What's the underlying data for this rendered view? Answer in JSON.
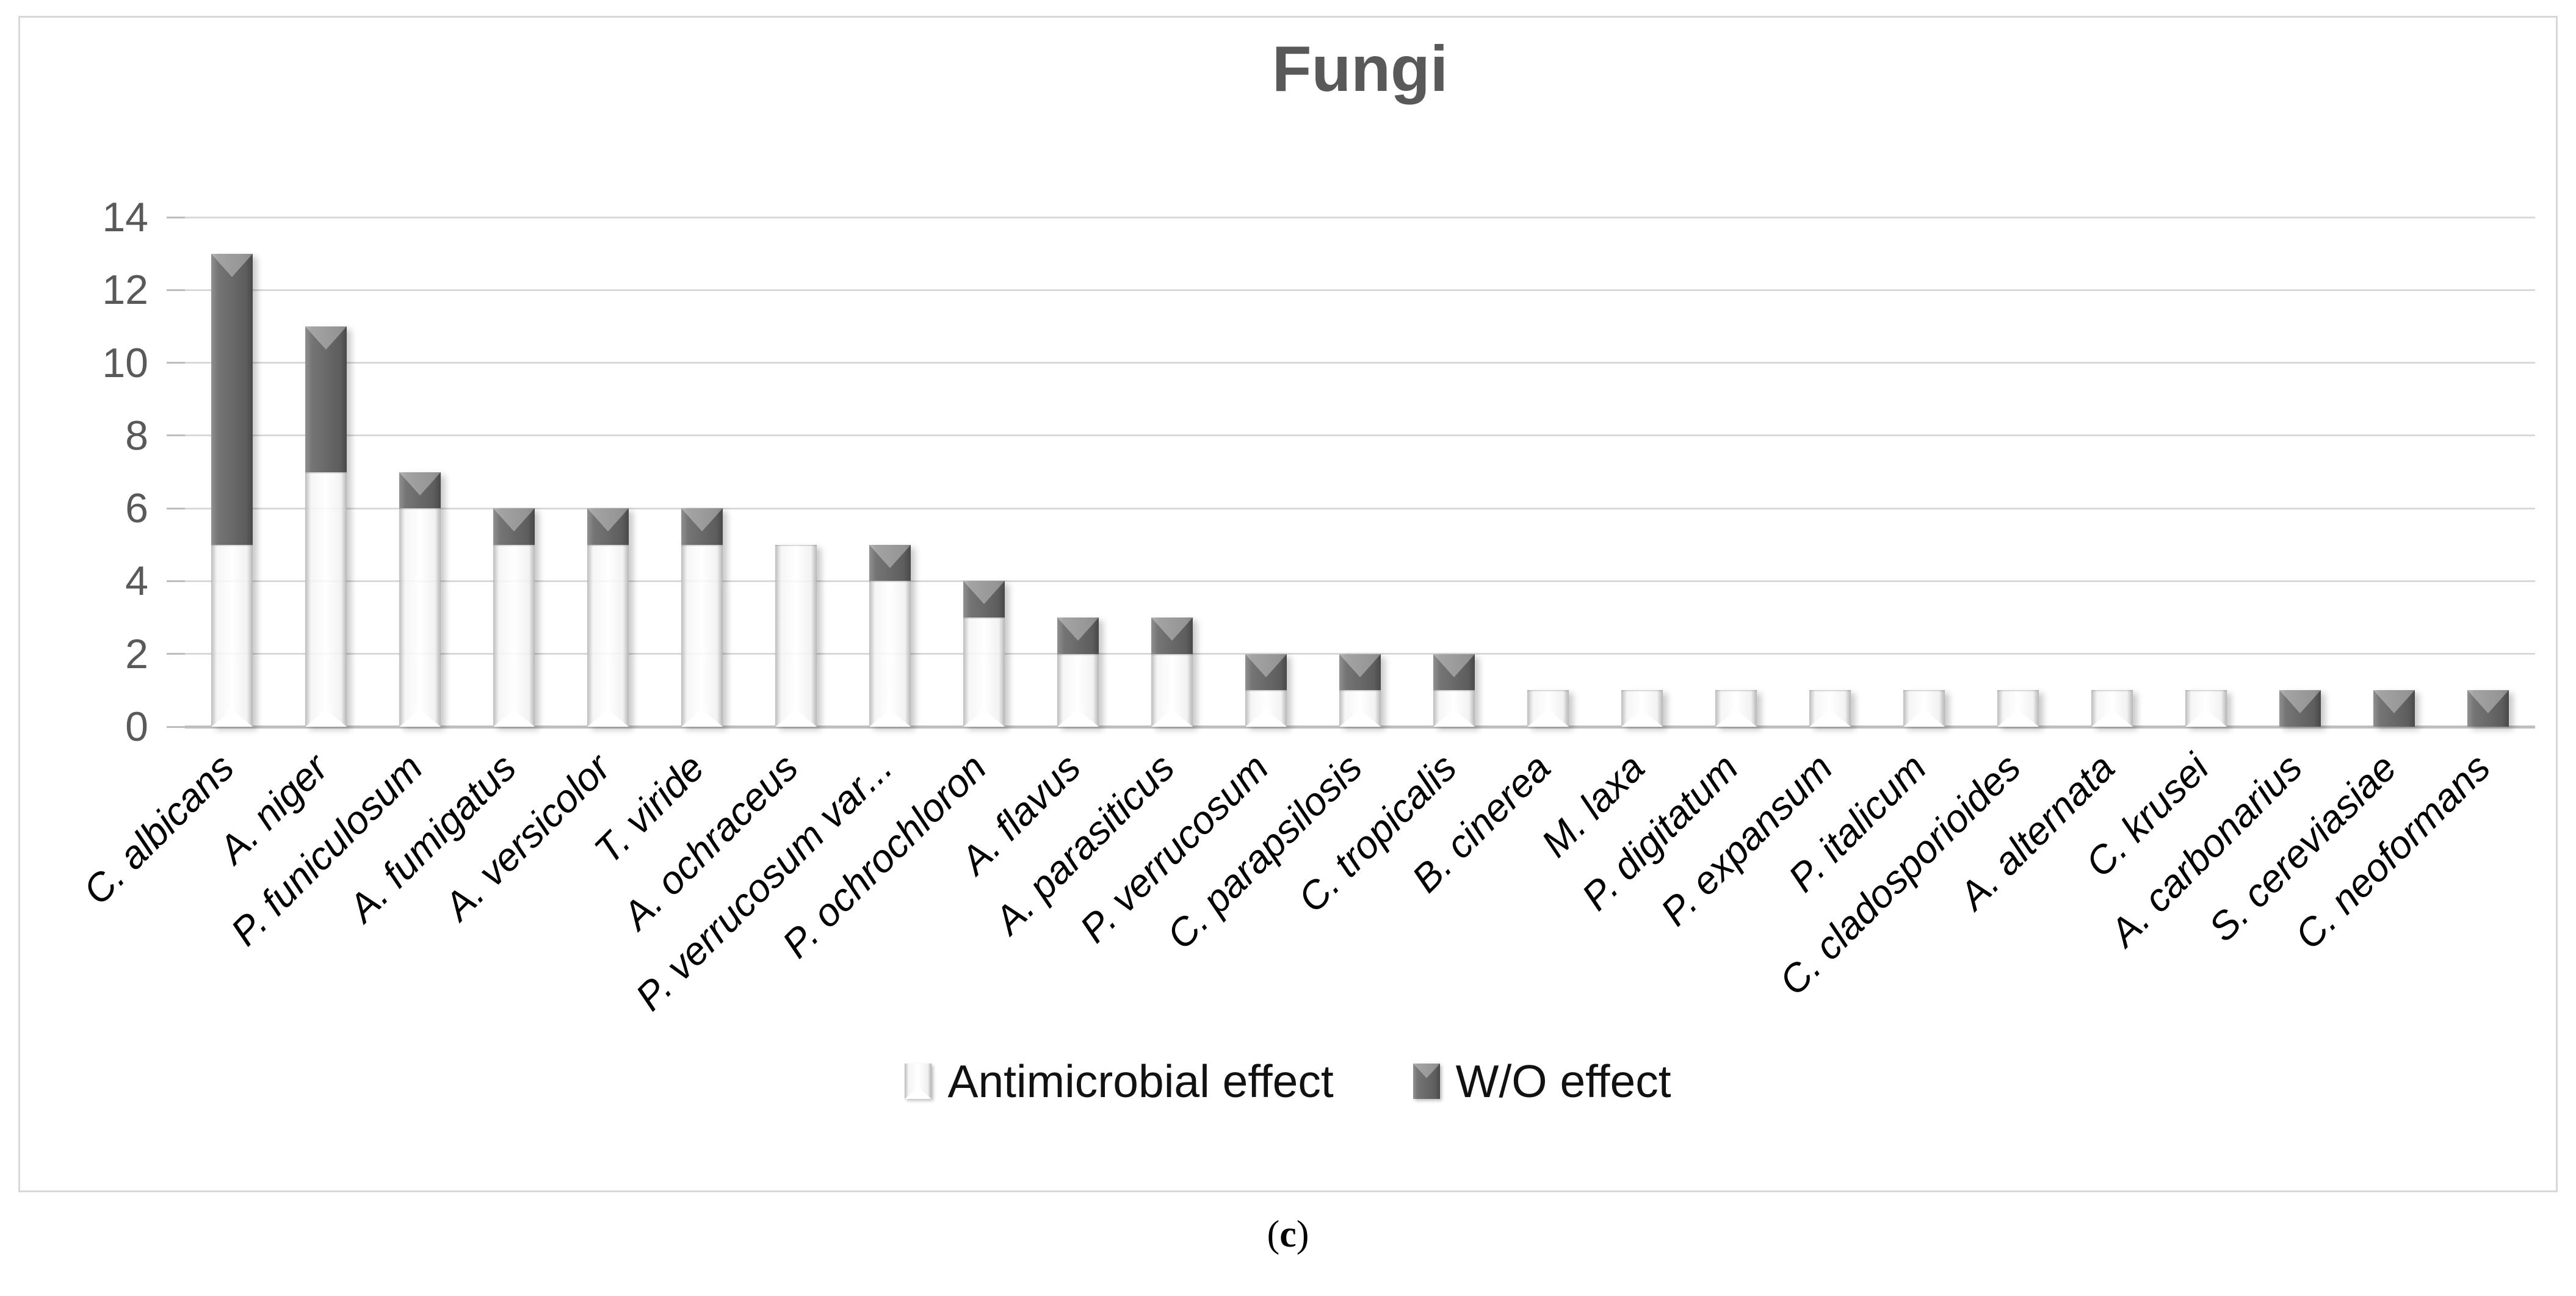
{
  "figure": {
    "caption": {
      "open": "(",
      "letter": "c",
      "close": ")"
    }
  },
  "chart_data": {
    "type": "bar",
    "stacked": true,
    "title": "Fungi",
    "categories": [
      "C. albicans",
      "A. niger",
      "P. funiculosum",
      "A. fumigatus",
      "A. versicolor",
      "T. viride",
      "A. ochraceus",
      "P. verrucosum var...",
      "P. ochrochloron",
      "A. flavus",
      "A. parasiticus",
      "P. verrucosum",
      "C. parapsilosis",
      "C. tropicalis",
      "B. cinerea",
      "M. laxa",
      "P. digitatum",
      "P. expansum",
      "P. italicum",
      "C. cladosporioides",
      "A. alternata",
      "C. krusei",
      "A. carbonarius",
      "S. cereviasiae",
      "C. neoformans"
    ],
    "series": [
      {
        "name": "Antimicrobial effect",
        "style": "white",
        "values": [
          5,
          7,
          6,
          5,
          5,
          5,
          5,
          4,
          3,
          2,
          2,
          1,
          1,
          1,
          1,
          1,
          1,
          1,
          1,
          1,
          1,
          1,
          0,
          0,
          0
        ]
      },
      {
        "name": "W/O effect",
        "style": "dark",
        "values": [
          8,
          4,
          1,
          1,
          1,
          1,
          0,
          1,
          1,
          1,
          1,
          1,
          1,
          1,
          0,
          0,
          0,
          0,
          0,
          0,
          0,
          0,
          1,
          1,
          1
        ]
      }
    ],
    "totals": [
      13,
      11,
      7,
      6,
      6,
      6,
      5,
      5,
      4,
      3,
      3,
      2,
      2,
      2,
      1,
      1,
      1,
      1,
      1,
      1,
      1,
      1,
      1,
      1,
      1
    ],
    "ylim": [
      0,
      14
    ],
    "ytick_step": 2,
    "grid": "horizontal",
    "legend_position": "bottom",
    "colors": {
      "antimicrobial_series": "#ffffff",
      "wo_series": "#696969",
      "gridline": "#d9d9d9",
      "title_text": "#595959",
      "axis_text": "#595959"
    }
  }
}
